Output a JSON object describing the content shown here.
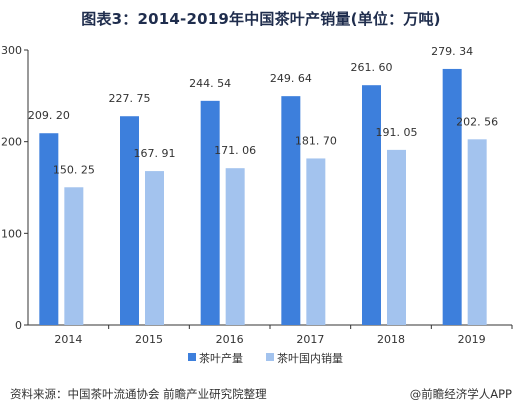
{
  "chart_data": {
    "type": "bar",
    "title": "图表3：2014-2019年中国茶叶产销量(单位：万吨)",
    "categories": [
      "2014",
      "2015",
      "2016",
      "2017",
      "2018",
      "2019"
    ],
    "series": [
      {
        "name": "茶叶产量",
        "values": [
          209.2,
          227.75,
          244.54,
          249.64,
          261.6,
          279.34
        ],
        "labels": [
          "209. 20",
          "227. 75",
          "244. 54",
          "249. 64",
          "261. 60",
          "279. 34"
        ],
        "color": "#3d7fdc"
      },
      {
        "name": "茶叶国内销量",
        "values": [
          150.25,
          167.91,
          171.06,
          181.7,
          191.05,
          202.56
        ],
        "labels": [
          "150. 25",
          "167. 91",
          "171. 06",
          "181. 70",
          "191. 05",
          "202. 56"
        ],
        "color": "#a3c3ee"
      }
    ],
    "yticks": [
      "0",
      "100",
      "200",
      "300"
    ],
    "ylim": [
      0,
      300
    ],
    "grid": false,
    "legend": "bottom-center"
  },
  "footer": {
    "source": "资料来源：中国茶叶流通协会 前瞻产业研究院整理",
    "brand": "@前瞻经济学人APP"
  }
}
